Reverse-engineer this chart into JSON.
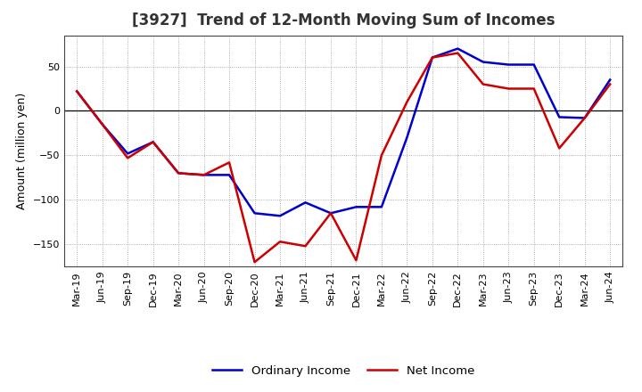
{
  "title": "[3927]  Trend of 12-Month Moving Sum of Incomes",
  "ylabel": "Amount (million yen)",
  "background_color": "#ffffff",
  "x_labels": [
    "Mar-19",
    "Jun-19",
    "Sep-19",
    "Dec-19",
    "Mar-20",
    "Jun-20",
    "Sep-20",
    "Dec-20",
    "Mar-21",
    "Jun-21",
    "Sep-21",
    "Dec-21",
    "Mar-22",
    "Jun-22",
    "Sep-22",
    "Dec-22",
    "Mar-23",
    "Jun-23",
    "Sep-23",
    "Dec-23",
    "Mar-24",
    "Jun-24"
  ],
  "ordinary_income": [
    22,
    -15,
    -48,
    -35,
    -70,
    -72,
    -72,
    -115,
    -118,
    -103,
    -115,
    -108,
    -108,
    -30,
    60,
    70,
    55,
    52,
    52,
    -7,
    -8,
    35
  ],
  "net_income": [
    22,
    -15,
    -53,
    -35,
    -70,
    -72,
    -58,
    -170,
    -147,
    -152,
    -115,
    -168,
    -50,
    10,
    60,
    65,
    30,
    25,
    25,
    -42,
    -8,
    30
  ],
  "ordinary_color": "#0000cc",
  "net_color": "#cc0000",
  "ylim": [
    -175,
    85
  ],
  "yticks": [
    -150,
    -100,
    -50,
    0,
    50
  ],
  "grid_color": "#999999",
  "line_width": 1.8,
  "title_color": "#333333",
  "title_fontsize": 12,
  "ylabel_fontsize": 9,
  "tick_fontsize": 8
}
